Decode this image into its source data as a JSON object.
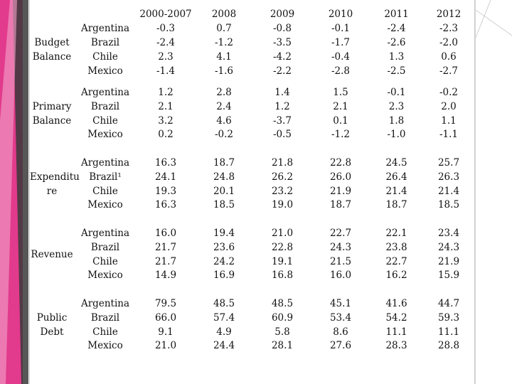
{
  "header": {
    "years": [
      "2000-2007",
      "2008",
      "2009",
      "2010",
      "2011",
      "2012"
    ]
  },
  "groups": [
    {
      "label_lines": [
        "Budget",
        "Balance"
      ],
      "countries": [
        "Argentina",
        "Brazil",
        "Chile",
        "Mexico"
      ],
      "rows": [
        [
          "-0.3",
          "0.7",
          "-0.8",
          "-0.1",
          "-2.4",
          "-2.3"
        ],
        [
          "-2.4",
          "-1.2",
          "-3.5",
          "-1.7",
          "-2.6",
          "-2.0"
        ],
        [
          "2.3",
          "4.1",
          "-4.2",
          "-0.4",
          "1.3",
          "0.6"
        ],
        [
          "-1.4",
          "-1.6",
          "-2.2",
          "-2.8",
          "-2.5",
          "-2.7"
        ]
      ]
    },
    {
      "label_lines": [
        "Primary",
        "Balance"
      ],
      "countries": [
        "Argentina",
        "Brazil",
        "Chile",
        "Mexico"
      ],
      "rows": [
        [
          "1.2",
          "2.8",
          "1.4",
          "1.5",
          "-0.1",
          "-0.2"
        ],
        [
          "2.1",
          "2.4",
          "1.2",
          "2.1",
          "2.3",
          "2.0"
        ],
        [
          "3.2",
          "4.6",
          "-3.7",
          "0.1",
          "1.8",
          "1.1"
        ],
        [
          "0.2",
          "-0.2",
          "-0.5",
          "-1.2",
          "-1.0",
          "-1.1"
        ]
      ]
    },
    {
      "label_lines": [
        "Expenditu",
        "re"
      ],
      "countries": [
        "Argentina",
        "Brazil¹",
        "Chile",
        "Mexico"
      ],
      "rows": [
        [
          "16.3",
          "18.7",
          "21.8",
          "22.8",
          "24.5",
          "25.7"
        ],
        [
          "24.1",
          "24.8",
          "26.2",
          "26.0",
          "26.4",
          "26.3"
        ],
        [
          "19.3",
          "20.1",
          "23.2",
          "21.9",
          "21.4",
          "21.4"
        ],
        [
          "16.3",
          "18.5",
          "19.0",
          "18.7",
          "18.7",
          "18.5"
        ]
      ]
    },
    {
      "label_lines": [
        "Revenue"
      ],
      "countries": [
        "Argentina",
        "Brazil",
        "Chile",
        "Mexico"
      ],
      "rows": [
        [
          "16.0",
          "19.4",
          "21.0",
          "22.7",
          "22.1",
          "23.4"
        ],
        [
          "21.7",
          "23.6",
          "22.8",
          "24.3",
          "23.8",
          "24.3"
        ],
        [
          "21.7",
          "24.2",
          "19.1",
          "21.5",
          "22.7",
          "21.9"
        ],
        [
          "14.9",
          "16.9",
          "16.8",
          "16.0",
          "16.2",
          "15.9"
        ]
      ]
    },
    {
      "label_lines": [
        "Public",
        "Debt"
      ],
      "countries": [
        "Argentina",
        "Brazil",
        "Chile",
        "Mexico"
      ],
      "rows": [
        [
          "79.5",
          "48.5",
          "48.5",
          "45.1",
          "41.6",
          "44.7"
        ],
        [
          "66.0",
          "57.4",
          "60.9",
          "53.4",
          "54.2",
          "59.3"
        ],
        [
          "9.1",
          "4.9",
          "5.8",
          "8.6",
          "11.1",
          "11.1"
        ],
        [
          "21.0",
          "24.4",
          "28.1",
          "27.6",
          "28.3",
          "28.8"
        ]
      ]
    }
  ],
  "theme": {
    "accent_magenta": "#e23a8c",
    "frame_gray": "#cfcfcf"
  }
}
